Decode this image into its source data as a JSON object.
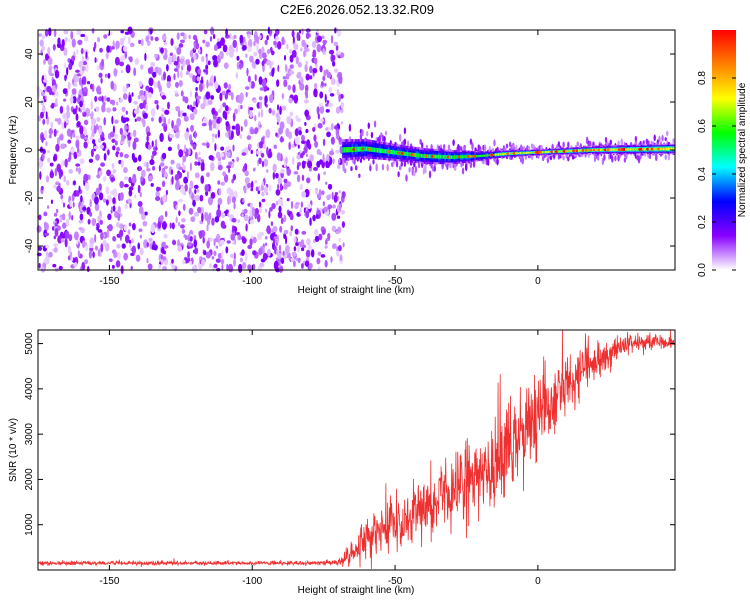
{
  "title": "C2E6.2026.052.13.32.R09",
  "chart_data": [
    {
      "type": "heatmap",
      "xlabel": "Height of straight line (km)",
      "ylabel": "Frequency (Hz)",
      "xlim": [
        -175,
        48
      ],
      "ylim": [
        -50,
        50
      ],
      "x_ticks": [
        "-150",
        "-100",
        "-50",
        "0"
      ],
      "y_ticks": [
        "-40",
        "-20",
        "0",
        "20",
        "40"
      ],
      "colorbar": {
        "label": "Normalized spectral amplitude",
        "range": [
          0,
          1
        ],
        "ticks": [
          "0.0",
          "0.2",
          "0.4",
          "0.6",
          "0.8"
        ],
        "colors": [
          "#ffffff",
          "#8800ff",
          "#0000ff",
          "#00ffff",
          "#00ff00",
          "#ffff00",
          "#ff8000",
          "#ff0000"
        ]
      },
      "noise_region_x": [
        -175,
        -68
      ],
      "ridge_center_hz": [
        [
          -68,
          0
        ],
        [
          -60,
          0.5
        ],
        [
          -50,
          -1
        ],
        [
          -40,
          -2.5
        ],
        [
          -30,
          -3
        ],
        [
          -20,
          -2.5
        ],
        [
          -15,
          -2
        ],
        [
          -10,
          -1.5
        ],
        [
          0,
          -1
        ],
        [
          10,
          -0.5
        ],
        [
          20,
          0
        ],
        [
          30,
          0.2
        ],
        [
          48,
          0.5
        ]
      ],
      "ridge_halfwidth_hz": [
        [
          -68,
          4.5
        ],
        [
          -50,
          3.5
        ],
        [
          -30,
          3
        ],
        [
          -15,
          1.5
        ],
        [
          0,
          1.2
        ],
        [
          20,
          1.6
        ],
        [
          48,
          2.2
        ]
      ]
    },
    {
      "type": "line",
      "xlabel": "Height of straight line (km)",
      "ylabel": "SNR (10 * v/v)",
      "xlim": [
        -175,
        48
      ],
      "ylim": [
        0,
        5300
      ],
      "x_ticks": [
        "-150",
        "-100",
        "-50",
        "0"
      ],
      "y_ticks": [
        "1000",
        "2000",
        "3000",
        "4000",
        "5000"
      ],
      "series": [
        {
          "color": "#ee3030",
          "x": [
            -175,
            -150,
            -125,
            -100,
            -80,
            -70,
            -66,
            -60,
            -55,
            -50,
            -45,
            -40,
            -35,
            -30,
            -25,
            -20,
            -15,
            -10,
            -5,
            0,
            5,
            10,
            15,
            20,
            25,
            30,
            35,
            40,
            48
          ],
          "y": [
            150,
            150,
            150,
            150,
            150,
            170,
            300,
            700,
            900,
            1000,
            1150,
            1350,
            1550,
            1700,
            1900,
            2100,
            2350,
            2650,
            2900,
            3300,
            3700,
            4100,
            4400,
            4600,
            4800,
            4950,
            5000,
            5050,
            5000
          ],
          "spread": [
            40,
            40,
            40,
            40,
            40,
            60,
            250,
            400,
            450,
            450,
            500,
            550,
            650,
            750,
            800,
            800,
            900,
            900,
            900,
            850,
            800,
            700,
            600,
            400,
            300,
            220,
            180,
            150,
            120
          ]
        }
      ]
    }
  ]
}
